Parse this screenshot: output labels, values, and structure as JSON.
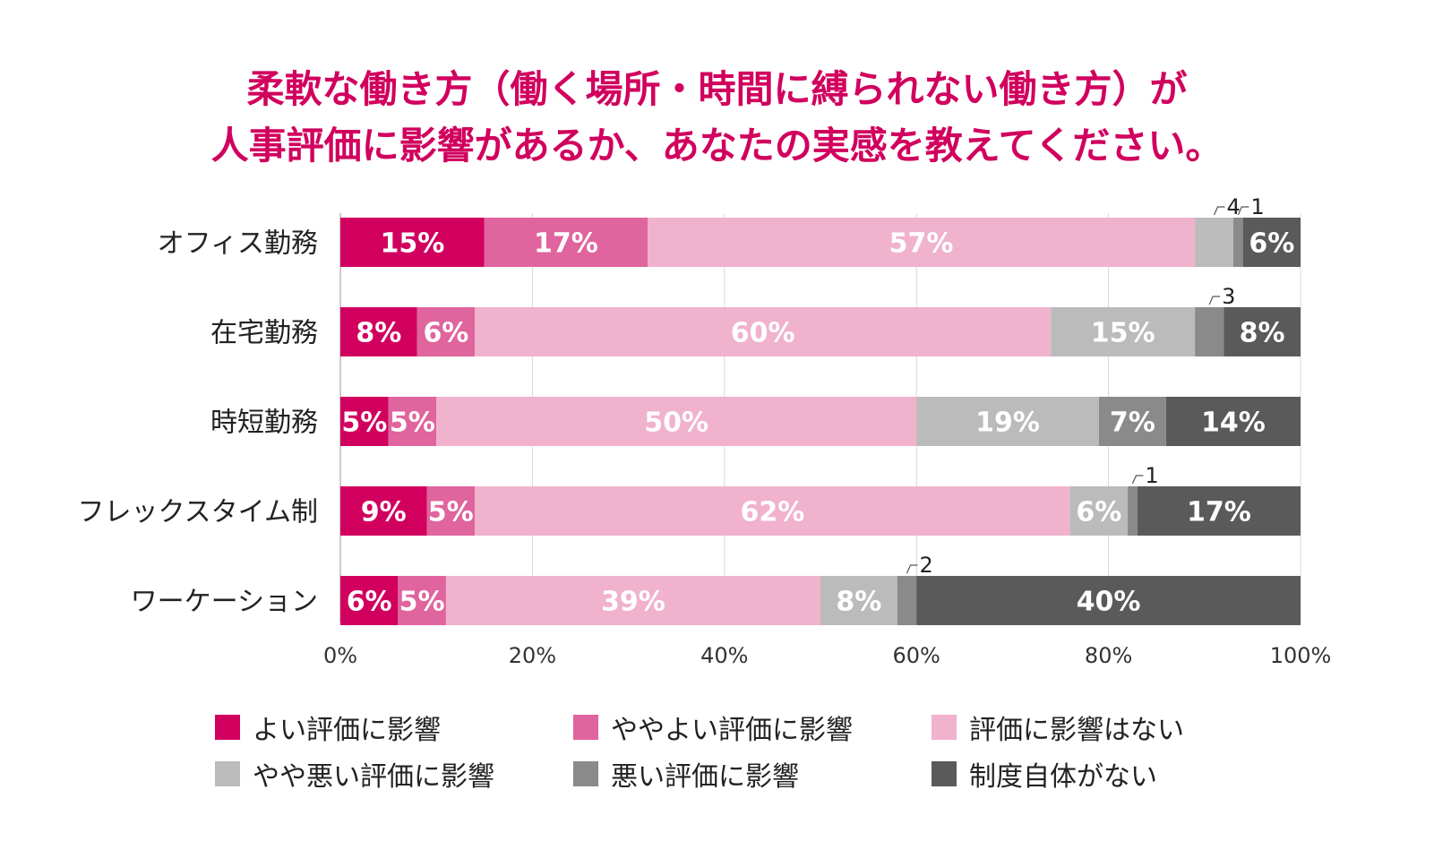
{
  "title_line1": "柔軟な働き方（働く場所・時間に縛られない働き方）が",
  "title_line2": "人事評価に影響があるか、あなたの実感を教えてください。",
  "chart_data": {
    "type": "bar",
    "orientation": "horizontal",
    "stacked": true,
    "categories": [
      "オフィス勤務",
      "在宅勤務",
      "時短勤務",
      "フレックスタイム制",
      "ワーケーション"
    ],
    "series": [
      {
        "name": "よい評価に影響",
        "color": "#d1005e",
        "values": [
          15,
          8,
          5,
          9,
          6
        ],
        "labels": [
          "15%",
          "8%",
          "5%",
          "9%",
          "6%"
        ]
      },
      {
        "name": "ややよい評価に影響",
        "color": "#e0649d",
        "values": [
          17,
          6,
          5,
          5,
          5
        ],
        "labels": [
          "17%",
          "6%",
          "5%",
          "5%",
          "5%"
        ]
      },
      {
        "name": "評価に影響はない",
        "color": "#f0b2cd",
        "values": [
          57,
          60,
          50,
          62,
          39
        ],
        "labels": [
          "57%",
          "60%",
          "50%",
          "62%",
          "39%"
        ]
      },
      {
        "name": "やや悪い評価に影響",
        "color": "#bbbbbb",
        "values": [
          4,
          15,
          19,
          6,
          8
        ],
        "labels": [
          "4",
          "15%",
          "19%",
          "6%",
          "8%"
        ]
      },
      {
        "name": "悪い評価に影響",
        "color": "#8a8a8a",
        "values": [
          1,
          3,
          7,
          1,
          2
        ],
        "labels": [
          "1",
          "3",
          "7%",
          "1",
          "2"
        ]
      },
      {
        "name": "制度自体がない",
        "color": "#5a5a5a",
        "values": [
          6,
          8,
          14,
          17,
          40
        ],
        "labels": [
          "6%",
          "8%",
          "14%",
          "17%",
          "40%"
        ]
      }
    ],
    "callouts": [
      {
        "row": 0,
        "series": 3
      },
      {
        "row": 0,
        "series": 4
      },
      {
        "row": 1,
        "series": 4
      },
      {
        "row": 3,
        "series": 4
      },
      {
        "row": 4,
        "series": 4
      }
    ],
    "xlim": [
      0,
      100
    ],
    "xticks": [
      "0%",
      "20%",
      "40%",
      "60%",
      "80%",
      "100%"
    ],
    "grid": true,
    "legend_position": "bottom"
  }
}
